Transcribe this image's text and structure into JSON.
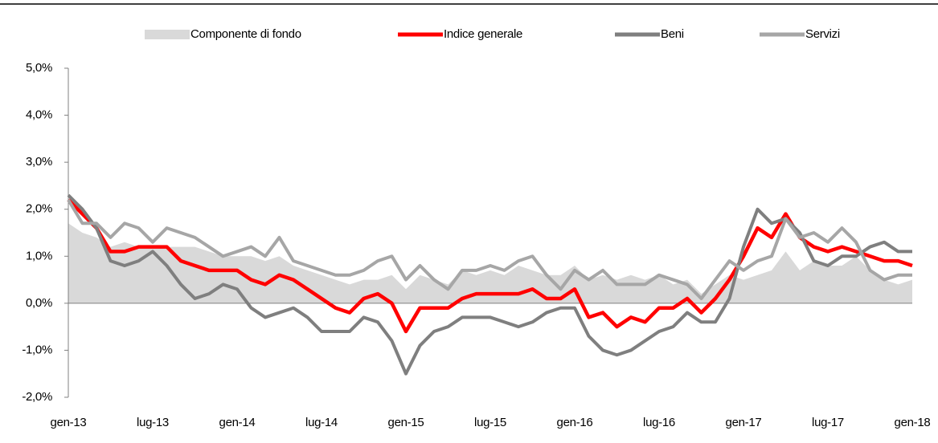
{
  "chart_data": {
    "type": "line",
    "categories": [
      "gen-13",
      null,
      null,
      null,
      null,
      null,
      "lug-13",
      null,
      null,
      null,
      null,
      null,
      "gen-14",
      null,
      null,
      null,
      null,
      null,
      "lug-14",
      null,
      null,
      null,
      null,
      null,
      "gen-15",
      null,
      null,
      null,
      null,
      null,
      "lug-15",
      null,
      null,
      null,
      null,
      null,
      "gen-16",
      null,
      null,
      null,
      null,
      null,
      "lug-16",
      null,
      null,
      null,
      null,
      null,
      "gen-17",
      null,
      null,
      null,
      null,
      null,
      "lug-17",
      null,
      null,
      null,
      null,
      null,
      "gen-18"
    ],
    "series": [
      {
        "name": "Componente di fondo",
        "kind": "area",
        "color": "#d9d9d9",
        "values": [
          1.7,
          1.5,
          1.4,
          1.2,
          1.3,
          1.2,
          1.2,
          1.2,
          1.2,
          1.2,
          1.1,
          1.0,
          1.0,
          1.0,
          0.9,
          1.0,
          0.8,
          0.7,
          0.6,
          0.5,
          0.4,
          0.5,
          0.5,
          0.6,
          0.3,
          0.6,
          0.5,
          0.4,
          0.7,
          0.6,
          0.7,
          0.6,
          0.8,
          0.7,
          0.6,
          0.6,
          0.8,
          0.5,
          0.6,
          0.5,
          0.6,
          0.5,
          0.6,
          0.4,
          0.5,
          0.2,
          0.4,
          0.6,
          0.5,
          0.6,
          0.7,
          1.1,
          0.7,
          0.9,
          0.8,
          0.8,
          1.0,
          0.7,
          0.5,
          0.4,
          0.5
        ]
      },
      {
        "name": "Indice generale",
        "color": "#ff0000",
        "values": [
          2.2,
          1.9,
          1.6,
          1.1,
          1.1,
          1.2,
          1.2,
          1.2,
          0.9,
          0.8,
          0.7,
          0.7,
          0.7,
          0.5,
          0.4,
          0.6,
          0.5,
          0.3,
          0.1,
          -0.1,
          -0.2,
          0.1,
          0.2,
          0.0,
          -0.6,
          -0.1,
          -0.1,
          -0.1,
          0.1,
          0.2,
          0.2,
          0.2,
          0.2,
          0.3,
          0.1,
          0.1,
          0.3,
          -0.3,
          -0.2,
          -0.5,
          -0.3,
          -0.4,
          -0.1,
          -0.1,
          0.1,
          -0.2,
          0.1,
          0.5,
          1.0,
          1.6,
          1.4,
          1.9,
          1.4,
          1.2,
          1.1,
          1.2,
          1.1,
          1.0,
          0.9,
          0.9,
          0.8
        ]
      },
      {
        "name": "Beni",
        "color": "#7f7f7f",
        "values": [
          2.3,
          2.0,
          1.6,
          0.9,
          0.8,
          0.9,
          1.1,
          0.8,
          0.4,
          0.1,
          0.2,
          0.4,
          0.3,
          -0.1,
          -0.3,
          -0.2,
          -0.1,
          -0.3,
          -0.6,
          -0.6,
          -0.6,
          -0.3,
          -0.4,
          -0.8,
          -1.5,
          -0.9,
          -0.6,
          -0.5,
          -0.3,
          -0.3,
          -0.3,
          -0.4,
          -0.5,
          -0.4,
          -0.2,
          -0.1,
          -0.1,
          -0.7,
          -1.0,
          -1.1,
          -1.0,
          -0.8,
          -0.6,
          -0.5,
          -0.2,
          -0.4,
          -0.4,
          0.1,
          1.2,
          2.0,
          1.7,
          1.8,
          1.5,
          0.9,
          0.8,
          1.0,
          1.0,
          1.2,
          1.3,
          1.1,
          1.1
        ]
      },
      {
        "name": "Servizi",
        "color": "#a6a6a6",
        "values": [
          2.2,
          1.7,
          1.7,
          1.4,
          1.7,
          1.6,
          1.3,
          1.6,
          1.5,
          1.4,
          1.2,
          1.0,
          1.1,
          1.2,
          1.0,
          1.4,
          0.9,
          0.8,
          0.7,
          0.6,
          0.6,
          0.7,
          0.9,
          1.0,
          0.5,
          0.8,
          0.5,
          0.3,
          0.7,
          0.7,
          0.8,
          0.7,
          0.9,
          1.0,
          0.6,
          0.3,
          0.7,
          0.5,
          0.7,
          0.4,
          0.4,
          0.4,
          0.6,
          0.5,
          0.4,
          0.1,
          0.5,
          0.9,
          0.7,
          0.9,
          1.0,
          1.8,
          1.4,
          1.5,
          1.3,
          1.6,
          1.3,
          0.7,
          0.5,
          0.6,
          0.6
        ]
      }
    ],
    "ylim": [
      -2,
      5
    ],
    "yticks": [
      {
        "value": -2,
        "label": "-2,0%"
      },
      {
        "value": -1,
        "label": "-1,0%"
      },
      {
        "value": 0,
        "label": "0,0%"
      },
      {
        "value": 1,
        "label": "1,0%"
      },
      {
        "value": 2,
        "label": "2,0%"
      },
      {
        "value": 3,
        "label": "3,0%"
      },
      {
        "value": 4,
        "label": "4,0%"
      },
      {
        "value": 5,
        "label": "5,0%"
      }
    ],
    "legend": "top"
  }
}
